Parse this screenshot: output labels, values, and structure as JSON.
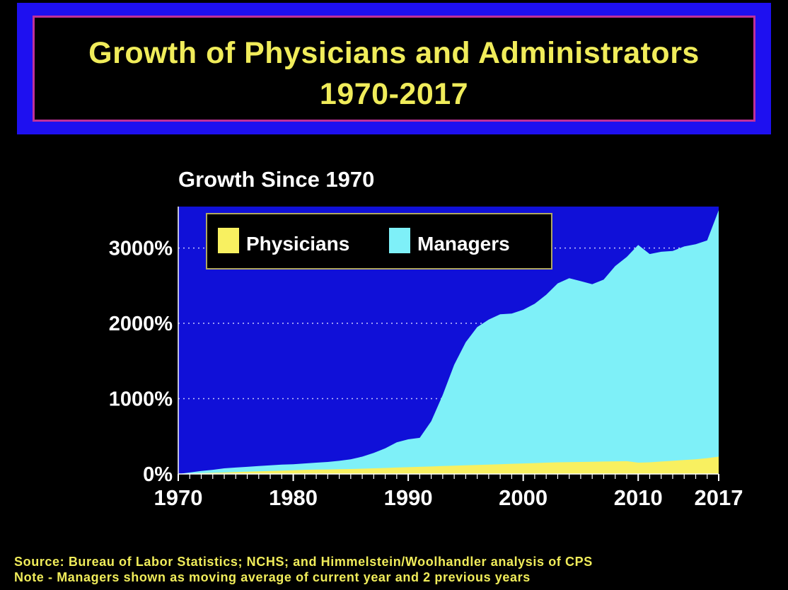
{
  "colors": {
    "background": "#000000",
    "title_frame": "#1e10f0",
    "title_border": "#c0309a",
    "title_text": "#f0ec5a",
    "plot_background": "#1010d8",
    "managers": "#7ef0f8",
    "physicians": "#f8f060",
    "gridline": "#c8c8ff"
  },
  "header": {
    "title_line1": "Growth of Physicians and Administrators",
    "title_line2": "1970-2017"
  },
  "footer": {
    "source": "Source: Bureau of Labor Statistics; NCHS; and Himmelstein/Woolhandler analysis of CPS",
    "note": "Note - Managers shown as moving average of current year and 2 previous years"
  },
  "chart_data": {
    "type": "area",
    "title": "Growth Since 1970",
    "xlabel": "",
    "ylabel": "",
    "xlim": [
      1970,
      2017
    ],
    "ylim": [
      0,
      3550
    ],
    "y_ticks": [
      0,
      1000,
      2000,
      3000
    ],
    "y_tick_labels": [
      "0%",
      "1000%",
      "2000%",
      "3000%"
    ],
    "x_ticks": [
      1970,
      1980,
      1990,
      2000,
      2010,
      2017
    ],
    "x_tick_labels": [
      "1970",
      "1980",
      "1990",
      "2000",
      "2010",
      "2017"
    ],
    "grid": "horizontal dotted at 1000, 2000, 3000",
    "legend": {
      "placement": "top-left",
      "entries": [
        "Physicians",
        "Managers"
      ]
    },
    "x": [
      1970,
      1971,
      1972,
      1973,
      1974,
      1975,
      1976,
      1977,
      1978,
      1979,
      1980,
      1981,
      1982,
      1983,
      1984,
      1985,
      1986,
      1987,
      1988,
      1989,
      1990,
      1991,
      1992,
      1993,
      1994,
      1995,
      1996,
      1997,
      1998,
      1999,
      2000,
      2001,
      2002,
      2003,
      2004,
      2005,
      2006,
      2007,
      2008,
      2009,
      2010,
      2011,
      2012,
      2013,
      2014,
      2015,
      2016,
      2017
    ],
    "series": [
      {
        "name": "Managers",
        "values": [
          0,
          20,
          40,
          55,
          75,
          85,
          95,
          105,
          115,
          125,
          130,
          140,
          150,
          160,
          175,
          195,
          230,
          280,
          340,
          420,
          460,
          480,
          700,
          1050,
          1450,
          1750,
          1950,
          2050,
          2120,
          2130,
          2180,
          2260,
          2380,
          2530,
          2600,
          2560,
          2520,
          2580,
          2760,
          2880,
          3040,
          2920,
          2950,
          2960,
          3020,
          3050,
          3100,
          3500
        ]
      },
      {
        "name": "Physicians",
        "values": [
          0,
          5,
          10,
          15,
          20,
          25,
          30,
          35,
          40,
          45,
          50,
          55,
          58,
          60,
          63,
          66,
          70,
          75,
          80,
          85,
          90,
          95,
          100,
          105,
          110,
          115,
          120,
          125,
          130,
          135,
          140,
          145,
          150,
          155,
          158,
          160,
          162,
          165,
          168,
          170,
          150,
          155,
          165,
          175,
          185,
          195,
          210,
          230
        ]
      }
    ]
  }
}
